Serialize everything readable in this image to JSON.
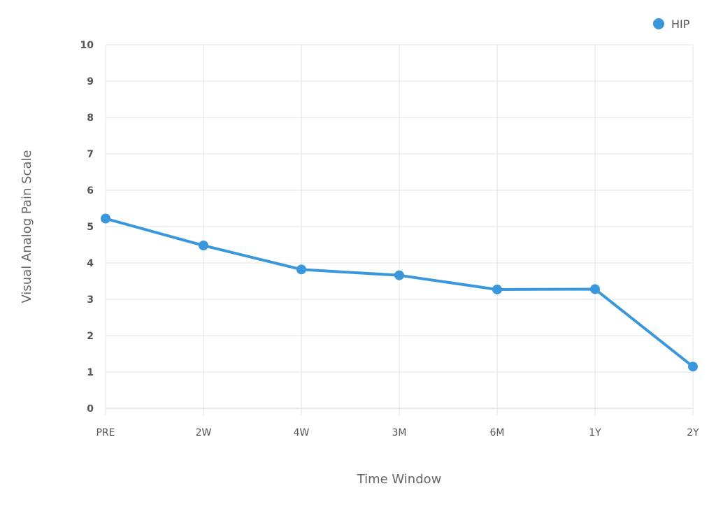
{
  "chart_data": {
    "type": "line",
    "categories": [
      "PRE",
      "2W",
      "4W",
      "3M",
      "6M",
      "1Y",
      "2Y"
    ],
    "series": [
      {
        "name": "HIP",
        "color": "#3a97dc",
        "values": [
          5.22,
          4.48,
          3.82,
          3.66,
          3.27,
          3.28,
          1.15
        ]
      }
    ],
    "xlabel": "Time Window",
    "ylabel": "Visual Analog Pain Scale",
    "ylim": [
      0,
      10
    ],
    "yticks": [
      0,
      1,
      2,
      3,
      4,
      5,
      6,
      7,
      8,
      9,
      10
    ],
    "grid": true,
    "legend_position": "top-right"
  }
}
